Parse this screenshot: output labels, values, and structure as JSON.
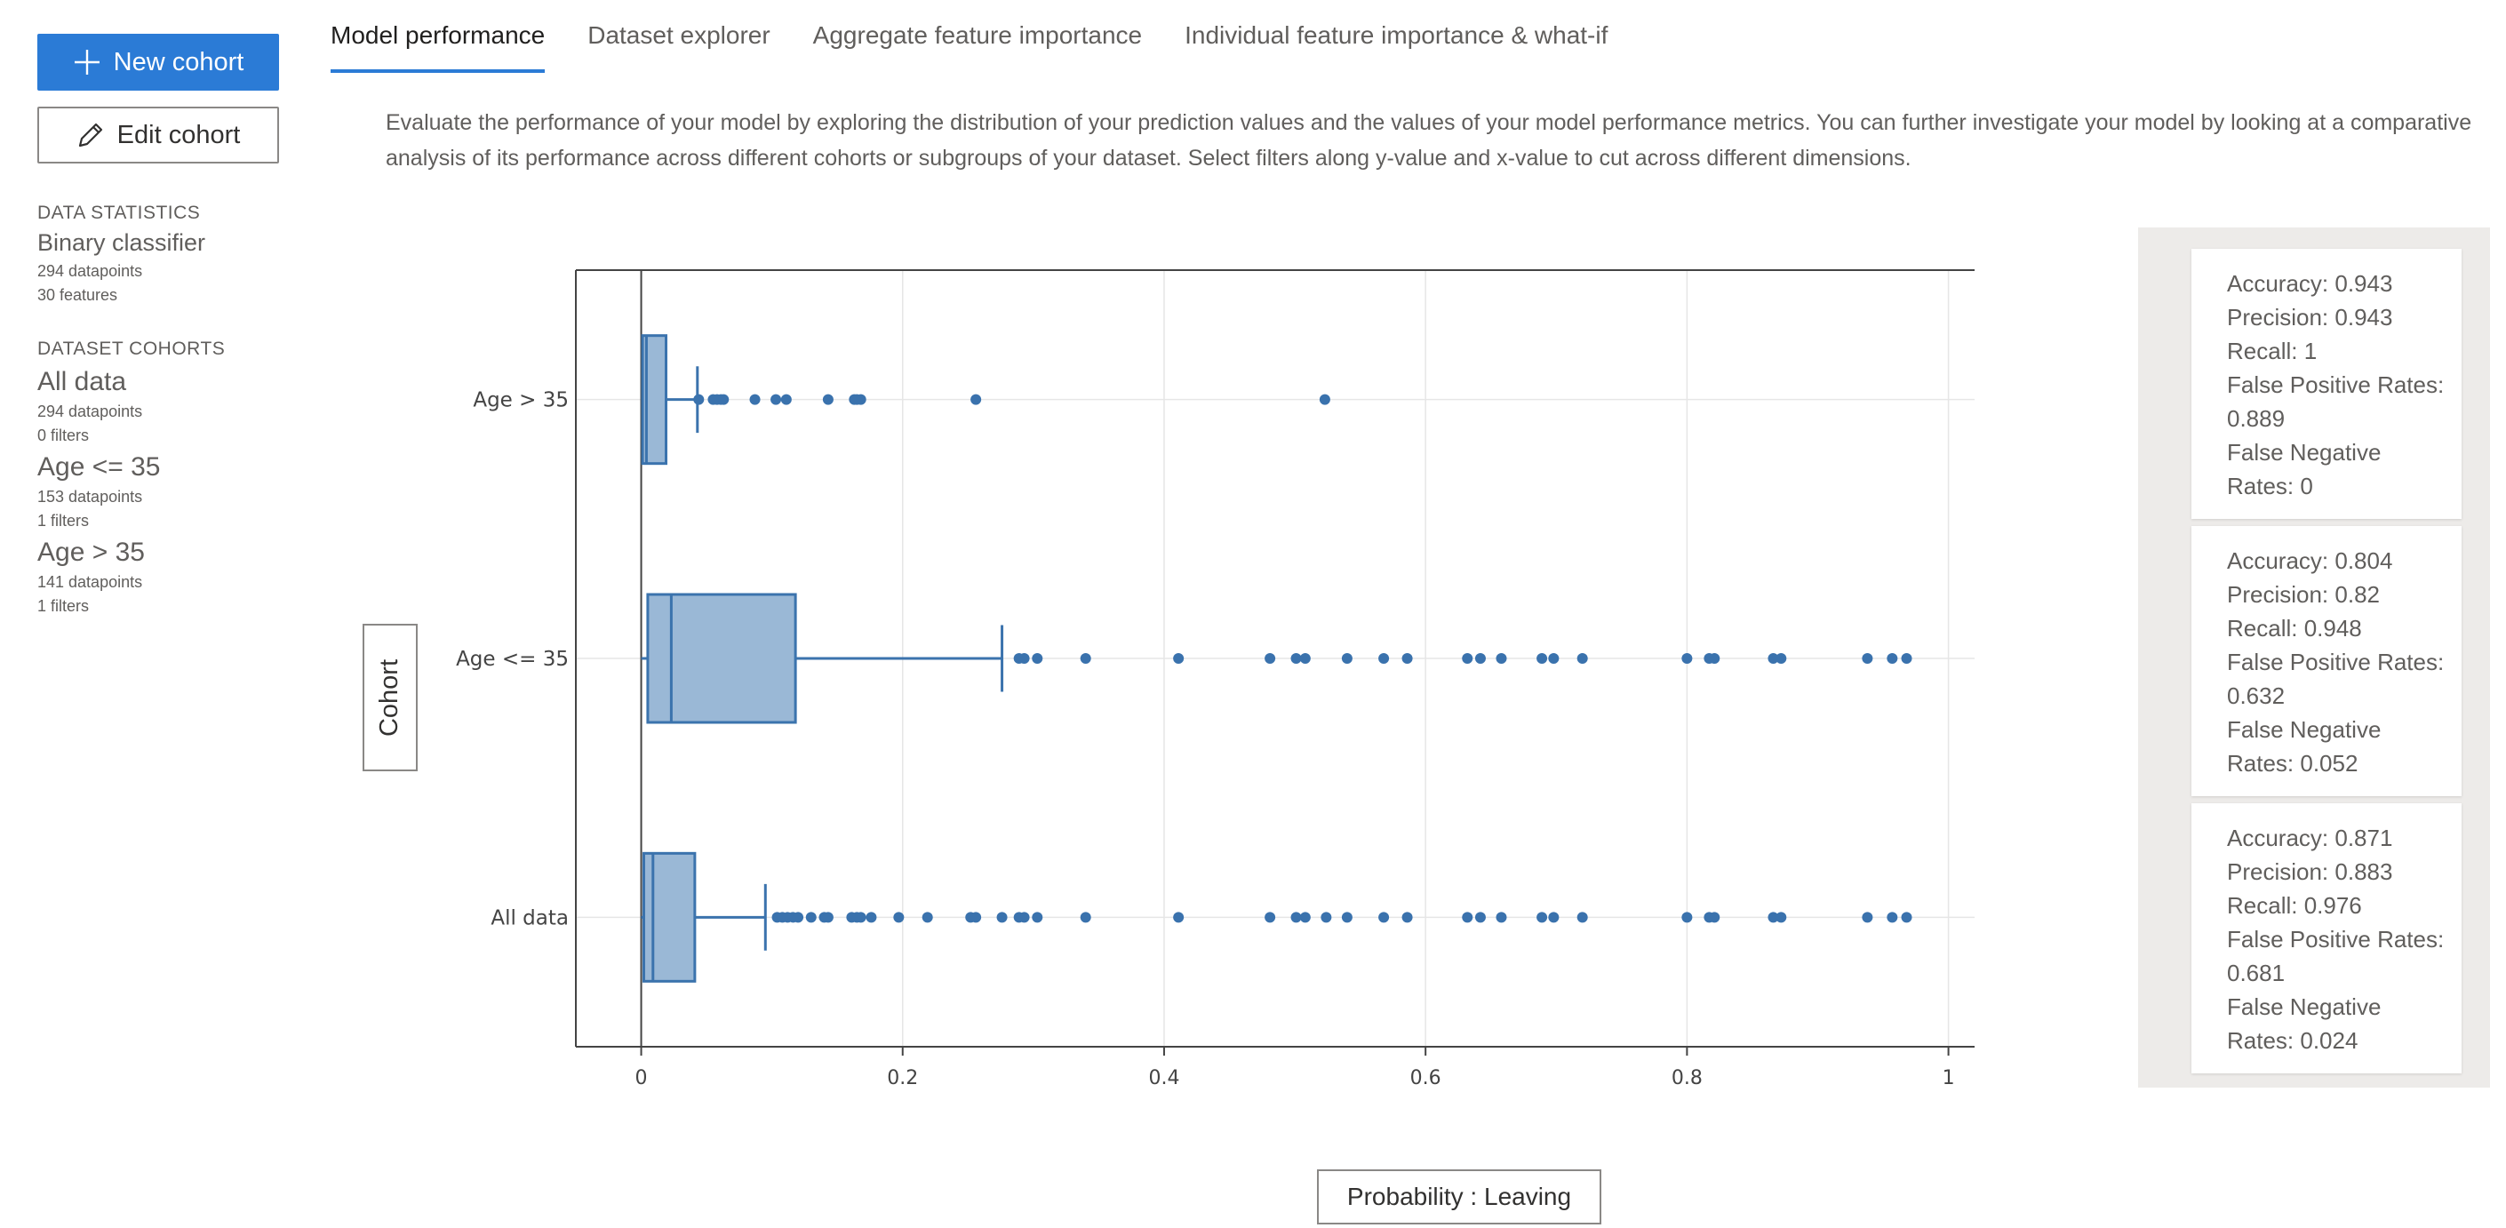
{
  "sidebar": {
    "new_cohort_label": "New cohort",
    "edit_cohort_label": "Edit cohort",
    "data_statistics_label": "DATA STATISTICS",
    "classifier_type": "Binary classifier",
    "datapoints": "294 datapoints",
    "features": "30 features",
    "dataset_cohorts_label": "DATASET COHORTS",
    "cohorts": [
      {
        "name": "All data",
        "datapoints": "294 datapoints",
        "filters": "0 filters"
      },
      {
        "name": "Age <= 35",
        "datapoints": "153 datapoints",
        "filters": "1 filters"
      },
      {
        "name": "Age > 35",
        "datapoints": "141 datapoints",
        "filters": "1 filters"
      }
    ]
  },
  "tabs": [
    {
      "label": "Model performance",
      "active": true
    },
    {
      "label": "Dataset explorer",
      "active": false
    },
    {
      "label": "Aggregate feature importance",
      "active": false
    },
    {
      "label": "Individual feature importance & what-if",
      "active": false
    }
  ],
  "description": "Evaluate the performance of your model by exploring the distribution of your prediction values and the values of your model performance metrics. You can further investigate your model by looking at a comparative analysis of its performance across different cohorts or subgroups of your dataset. Select filters along y-value and x-value to cut across different dimensions.",
  "y_axis_button_label": "Cohort",
  "x_axis_button_label": "Probability : Leaving",
  "colors": {
    "accent": "#2b7bd6",
    "box_fill": "#9ab8d6",
    "box_stroke": "#3b73ad",
    "point": "#3a72ad"
  },
  "chart_data": {
    "type": "box",
    "orientation": "horizontal",
    "xlim": [
      -0.05,
      1.02
    ],
    "xticks": [
      0,
      0.2,
      0.4,
      0.6,
      0.8,
      1
    ],
    "xtick_labels": [
      "0",
      "0.2",
      "0.4",
      "0.6",
      "0.8",
      "1"
    ],
    "grid": true,
    "categories": [
      "Age > 35",
      "Age <= 35",
      "All data"
    ],
    "series": [
      {
        "category": "Age > 35",
        "min": 0,
        "q1": 0.001,
        "median": 0.004,
        "q3": 0.019,
        "upper_whisker": 0.043,
        "outliers": [
          0.044,
          0.055,
          0.058,
          0.061,
          0.063,
          0.087,
          0.103,
          0.111,
          0.143,
          0.163,
          0.165,
          0.168,
          0.256,
          0.523
        ]
      },
      {
        "category": "Age <= 35",
        "min": 0,
        "q1": 0.005,
        "median": 0.023,
        "q3": 0.118,
        "upper_whisker": 0.276,
        "outliers": [
          0.289,
          0.293,
          0.303,
          0.34,
          0.411,
          0.481,
          0.501,
          0.508,
          0.54,
          0.568,
          0.586,
          0.632,
          0.642,
          0.658,
          0.689,
          0.698,
          0.72,
          0.8,
          0.817,
          0.821,
          0.866,
          0.872,
          0.938,
          0.957,
          0.968
        ]
      },
      {
        "category": "All data",
        "min": 0,
        "q1": 0.002,
        "median": 0.009,
        "q3": 0.041,
        "upper_whisker": 0.095,
        "outliers": [
          0.104,
          0.108,
          0.112,
          0.116,
          0.12,
          0.13,
          0.14,
          0.143,
          0.161,
          0.165,
          0.168,
          0.176,
          0.197,
          0.219,
          0.252,
          0.256,
          0.276,
          0.289,
          0.293,
          0.303,
          0.34,
          0.411,
          0.481,
          0.501,
          0.508,
          0.524,
          0.54,
          0.568,
          0.586,
          0.632,
          0.642,
          0.658,
          0.689,
          0.698,
          0.72,
          0.8,
          0.817,
          0.821,
          0.866,
          0.872,
          0.938,
          0.957,
          0.968
        ]
      }
    ]
  },
  "metrics": [
    {
      "accuracy": "Accuracy: 0.943",
      "precision": "Precision: 0.943",
      "recall": "Recall: 1",
      "fpr_label": "False Positive Rates:",
      "fpr_value": "0.889",
      "fnr_label": "False Negative",
      "fnr_value": "Rates: 0"
    },
    {
      "accuracy": "Accuracy: 0.804",
      "precision": "Precision: 0.82",
      "recall": "Recall: 0.948",
      "fpr_label": "False Positive Rates:",
      "fpr_value": "0.632",
      "fnr_label": "False Negative",
      "fnr_value": "Rates: 0.052"
    },
    {
      "accuracy": "Accuracy: 0.871",
      "precision": "Precision: 0.883",
      "recall": "Recall: 0.976",
      "fpr_label": "False Positive Rates:",
      "fpr_value": "0.681",
      "fnr_label": "False Negative",
      "fnr_value": "Rates: 0.024"
    }
  ]
}
